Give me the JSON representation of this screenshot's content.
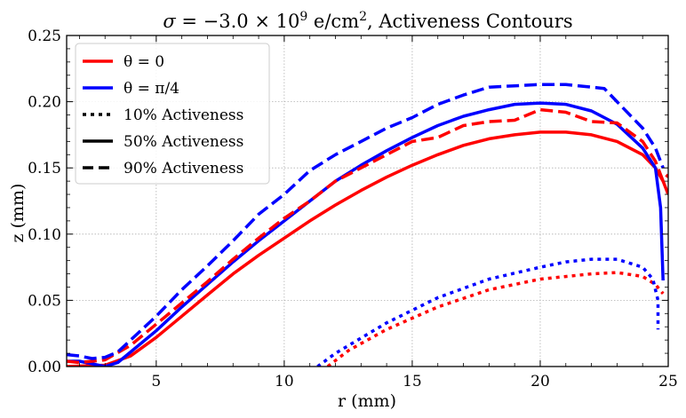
{
  "chart_data": {
    "type": "line",
    "title_parts": {
      "sigma": "σ",
      "eq": " = −3.0 × 10",
      "exp": "9",
      "unit": " e/cm",
      "unit_exp": "2",
      "rest": ", Activeness Contours"
    },
    "xlabel": "r (mm)",
    "ylabel": "z (mm)",
    "xlim": [
      1.5,
      25
    ],
    "ylim": [
      0,
      0.25
    ],
    "xticks": [
      5,
      10,
      15,
      20,
      25
    ],
    "xtick_labels": [
      "5",
      "10",
      "15",
      "20",
      "25"
    ],
    "yticks": [
      0.0,
      0.05,
      0.1,
      0.15,
      0.2,
      0.25
    ],
    "ytick_labels": [
      "0.00",
      "0.05",
      "0.10",
      "0.15",
      "0.20",
      "0.25"
    ],
    "grid": true,
    "legend_position": "top-left",
    "legend": [
      {
        "label": "θ = 0",
        "color": "#ff0000",
        "style": "solid"
      },
      {
        "label": "θ = π/4",
        "color": "#0000ff",
        "style": "solid"
      },
      {
        "label": "10% Activeness",
        "color": "#000000",
        "style": "dotted"
      },
      {
        "label": "50% Activeness",
        "color": "#000000",
        "style": "solid"
      },
      {
        "label": "90% Activeness",
        "color": "#000000",
        "style": "dashed"
      }
    ],
    "series": [
      {
        "name": "θ = 0, 10% Activeness",
        "color": "#ff0000",
        "style": "dotted",
        "x": [
          11.7,
          12.5,
          14,
          16,
          18,
          20,
          22,
          23,
          24,
          24.5,
          24.8
        ],
        "y": [
          0.0,
          0.012,
          0.028,
          0.045,
          0.058,
          0.066,
          0.07,
          0.071,
          0.068,
          0.062,
          0.055
        ]
      },
      {
        "name": "θ = π/4, 10% Activeness",
        "color": "#0000ff",
        "style": "dotted",
        "x": [
          11.3,
          12,
          14,
          16,
          18,
          20,
          21,
          22,
          23,
          24,
          24.4,
          24.6,
          24.6
        ],
        "y": [
          0.0,
          0.01,
          0.033,
          0.052,
          0.066,
          0.075,
          0.079,
          0.081,
          0.081,
          0.075,
          0.066,
          0.05,
          0.028
        ]
      },
      {
        "name": "θ = 0, 50% Activeness",
        "color": "#ff0000",
        "style": "solid",
        "x": [
          1.5,
          3,
          4,
          5,
          6,
          7,
          8,
          9,
          10,
          11,
          12,
          13,
          14,
          15,
          16,
          17,
          18,
          19,
          20,
          21,
          22,
          23,
          24,
          24.5,
          24.8,
          25
        ],
        "y": [
          0.0,
          0.001,
          0.008,
          0.022,
          0.038,
          0.054,
          0.07,
          0.084,
          0.097,
          0.11,
          0.122,
          0.133,
          0.143,
          0.152,
          0.16,
          0.167,
          0.172,
          0.175,
          0.177,
          0.177,
          0.175,
          0.17,
          0.16,
          0.15,
          0.14,
          0.13
        ]
      },
      {
        "name": "θ = π/4, 50% Activeness",
        "color": "#0000ff",
        "style": "solid",
        "x": [
          1.5,
          2,
          2.5,
          3,
          3.5,
          4,
          5,
          6,
          7,
          8,
          9,
          10,
          11,
          12,
          13,
          14,
          15,
          16,
          17,
          18,
          19,
          20,
          21,
          22,
          23,
          24,
          24.5,
          24.7,
          24.8
        ],
        "y": [
          0.004,
          0.004,
          0.002,
          0.0,
          0.003,
          0.011,
          0.027,
          0.045,
          0.062,
          0.079,
          0.095,
          0.11,
          0.125,
          0.14,
          0.152,
          0.163,
          0.173,
          0.182,
          0.189,
          0.194,
          0.198,
          0.199,
          0.198,
          0.193,
          0.183,
          0.165,
          0.15,
          0.12,
          0.065
        ]
      },
      {
        "name": "θ = 0, 90% Activeness",
        "color": "#ff0000",
        "style": "dashed",
        "x": [
          1.5,
          2,
          3,
          4,
          5,
          6,
          7,
          8,
          9,
          10,
          11,
          12,
          13,
          14,
          15,
          16,
          17,
          18,
          19,
          20,
          21,
          22,
          23,
          24,
          24.5,
          24.8,
          25
        ],
        "y": [
          0.004,
          0.003,
          0.005,
          0.016,
          0.032,
          0.048,
          0.064,
          0.081,
          0.097,
          0.112,
          0.125,
          0.14,
          0.15,
          0.16,
          0.17,
          0.173,
          0.182,
          0.185,
          0.186,
          0.194,
          0.192,
          0.185,
          0.184,
          0.17,
          0.155,
          0.14,
          0.145
        ]
      },
      {
        "name": "θ = π/4, 90% Activeness",
        "color": "#0000ff",
        "style": "dashed",
        "x": [
          1.5,
          2,
          2.5,
          3,
          3.5,
          4,
          5,
          6,
          7,
          8,
          9,
          10,
          11,
          12,
          13,
          14,
          15,
          16,
          17,
          18,
          19,
          20,
          21,
          22,
          22.5,
          23,
          24,
          24.5,
          24.8
        ],
        "y": [
          0.009,
          0.008,
          0.006,
          0.007,
          0.011,
          0.02,
          0.038,
          0.058,
          0.076,
          0.095,
          0.115,
          0.13,
          0.148,
          0.16,
          0.17,
          0.18,
          0.188,
          0.198,
          0.205,
          0.211,
          0.212,
          0.213,
          0.213,
          0.211,
          0.21,
          0.2,
          0.18,
          0.165,
          0.15
        ]
      }
    ]
  }
}
